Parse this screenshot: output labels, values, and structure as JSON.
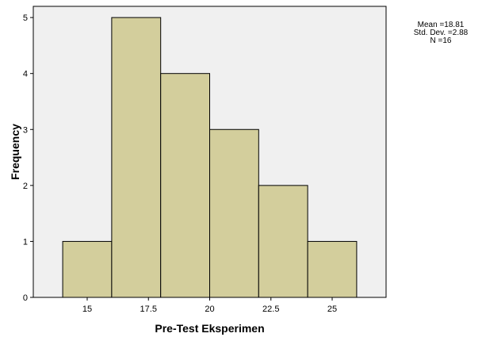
{
  "chart_data": {
    "type": "bar",
    "subtype": "histogram",
    "bins": [
      {
        "start": 14,
        "end": 16,
        "count": 1
      },
      {
        "start": 16,
        "end": 18,
        "count": 5
      },
      {
        "start": 18,
        "end": 20,
        "count": 4
      },
      {
        "start": 20,
        "end": 22,
        "count": 3
      },
      {
        "start": 22,
        "end": 24,
        "count": 2
      },
      {
        "start": 24,
        "end": 26,
        "count": 1
      }
    ],
    "xlabel": "Pre-Test Eksperimen",
    "ylabel": "Frequency",
    "xlim": [
      12.8,
      27.2
    ],
    "ylim": [
      0,
      5.2
    ],
    "x_ticks": [
      15,
      17.5,
      20,
      22.5,
      25
    ],
    "x_tick_labels": [
      "15",
      "17.5",
      "20",
      "22.5",
      "25"
    ],
    "y_ticks": [
      0,
      1,
      2,
      3,
      4,
      5
    ],
    "y_tick_labels": [
      "0",
      "1",
      "2",
      "3",
      "4",
      "5"
    ],
    "grid": false,
    "colors": {
      "bar_fill": "#d3ce9c",
      "bar_stroke": "#000000",
      "plot_bg": "#f0f0f0"
    }
  },
  "stats": {
    "mean": "Mean =18.81",
    "std_dev": "Std. Dev. =2.88",
    "n": "N =16"
  }
}
